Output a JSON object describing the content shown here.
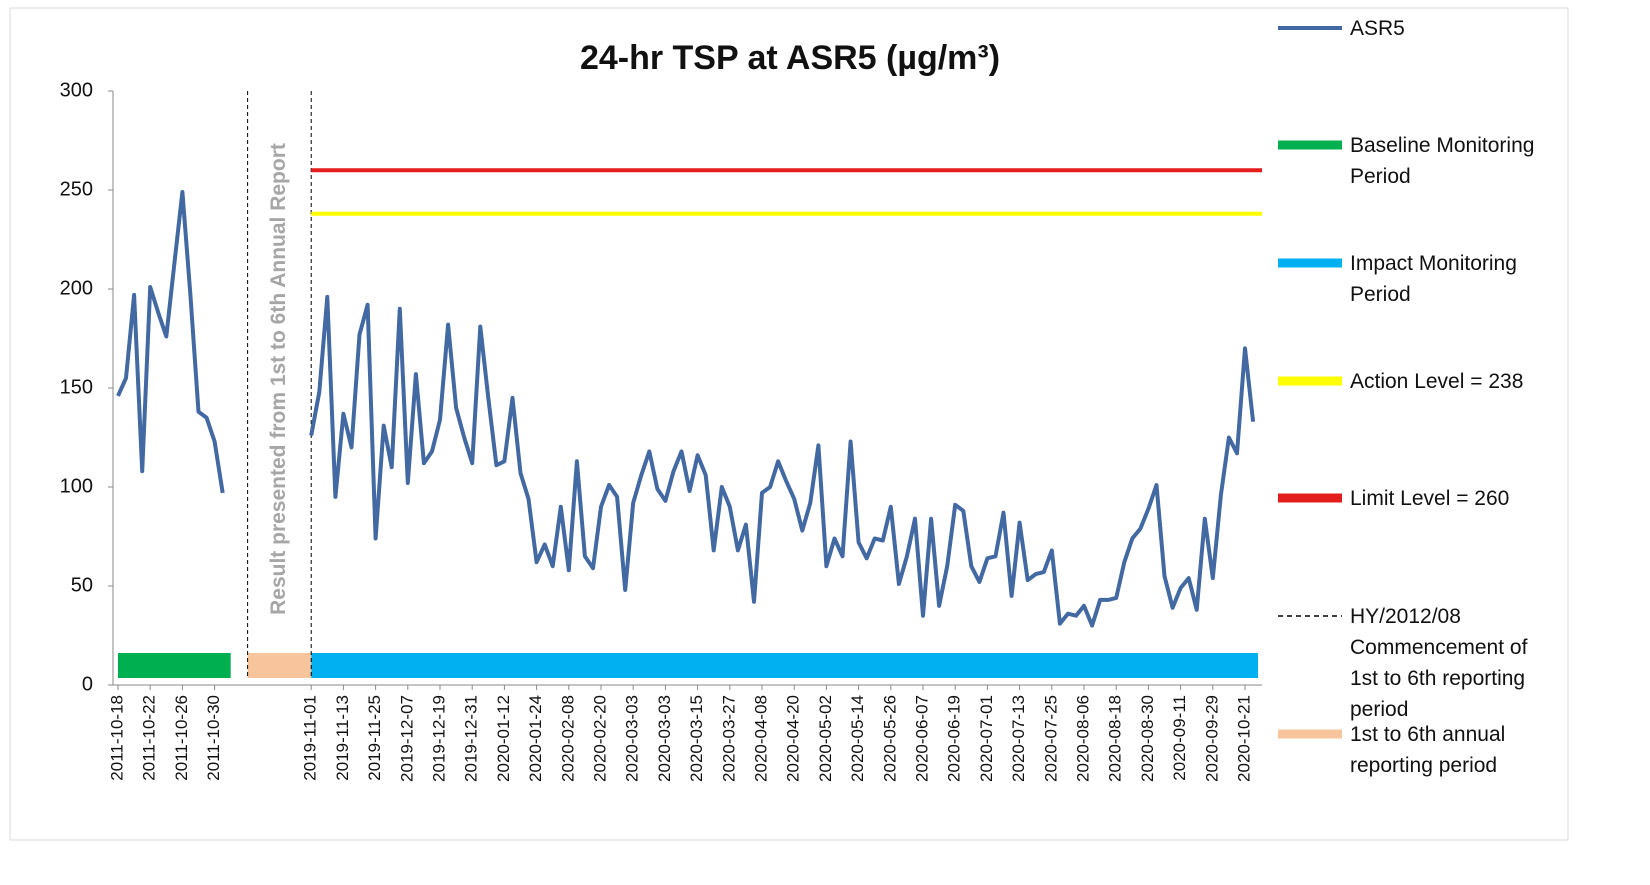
{
  "chart_data": {
    "type": "line",
    "title": "24-hr TSP at ASR5 (µg/m³)",
    "annotation": "Result presented from 1st to 6th Annual Report",
    "categories": [
      "2011-10-18",
      null,
      null,
      null,
      "2011-10-22",
      null,
      null,
      null,
      "2011-10-26",
      null,
      null,
      null,
      "2011-10-30",
      null,
      null,
      null,
      null,
      null,
      null,
      null,
      null,
      null,
      null,
      null,
      "2019-11-01",
      null,
      null,
      null,
      "2019-11-13",
      null,
      null,
      null,
      "2019-11-25",
      null,
      null,
      null,
      "2019-12-07",
      null,
      null,
      null,
      "2019-12-19",
      null,
      null,
      null,
      "2019-12-31",
      null,
      null,
      null,
      "2020-01-12",
      null,
      null,
      null,
      "2020-01-24",
      null,
      null,
      null,
      "2020-02-08",
      null,
      null,
      null,
      "2020-02-20",
      null,
      null,
      null,
      "2020-03-03",
      null,
      null,
      null,
      "2020-03-03",
      null,
      null,
      null,
      "2020-03-15",
      null,
      null,
      null,
      "2020-03-27",
      null,
      null,
      null,
      "2020-04-08",
      null,
      null,
      null,
      "2020-04-20",
      null,
      null,
      null,
      "2020-05-02",
      null,
      null,
      null,
      "2020-05-14",
      null,
      null,
      null,
      "2020-05-26",
      null,
      null,
      null,
      "2020-06-07",
      null,
      null,
      null,
      "2020-06-19",
      null,
      null,
      null,
      "2020-07-01",
      null,
      null,
      null,
      "2020-07-13",
      null,
      null,
      null,
      "2020-07-25",
      null,
      null,
      null,
      "2020-08-06",
      null,
      null,
      null,
      "2020-08-18",
      null,
      null,
      null,
      "2020-08-30",
      null,
      null,
      null,
      "2020-09-11",
      null,
      null,
      null,
      "2020-09-29",
      null,
      null,
      null,
      "2020-10-21",
      null
    ],
    "series": [
      {
        "name": "ASR5",
        "color": "#4369a3",
        "values": [
          146,
          155,
          197,
          108,
          201,
          188,
          176,
          213,
          249,
          197,
          138,
          135,
          123,
          97,
          null,
          null,
          null,
          null,
          null,
          null,
          null,
          null,
          null,
          null,
          126,
          148,
          196,
          95,
          137,
          120,
          177,
          192,
          74,
          131,
          110,
          190,
          102,
          157,
          112,
          118,
          134,
          182,
          140,
          125,
          112,
          181,
          145,
          111,
          113,
          145,
          107,
          94,
          62,
          71,
          60,
          90,
          58,
          113,
          65,
          59,
          90,
          101,
          95,
          48,
          92,
          106,
          118,
          99,
          93,
          108,
          118,
          98,
          116,
          106,
          68,
          100,
          90,
          68,
          81,
          42,
          97,
          100,
          113,
          103,
          94,
          78,
          92,
          121,
          60,
          74,
          65,
          123,
          72,
          64,
          74,
          73,
          90,
          51,
          65,
          84,
          35,
          84,
          40,
          60,
          91,
          88,
          60,
          52,
          64,
          65,
          87,
          45,
          82,
          53,
          56,
          57,
          68,
          31,
          36,
          35,
          40,
          30,
          43,
          43,
          44,
          62,
          74,
          79,
          89,
          101,
          55,
          39,
          49,
          54,
          38,
          84,
          54,
          96,
          125,
          117,
          170,
          133
        ]
      }
    ],
    "reference_lines": [
      {
        "name": "Action Level = 238",
        "value": 238,
        "color": "#ffff00"
      },
      {
        "name": "Limit Level = 260",
        "value": 260,
        "color": "#e31c1c"
      }
    ],
    "periods": [
      {
        "name": "Baseline Monitoring Period",
        "color": "#00b050"
      },
      {
        "name": "Impact Monitoring Period",
        "color": "#00b0f0"
      },
      {
        "name": "1st to 6th annual reporting period",
        "color": "#f8c49c"
      }
    ],
    "markers": [
      {
        "name": "HY/2012/08 Commencement of 1st to 6th reporting period",
        "style": "dashed"
      }
    ],
    "ylim": [
      0,
      300
    ],
    "yticks": [
      0,
      50,
      100,
      150,
      200,
      250,
      300
    ],
    "grid": false
  }
}
